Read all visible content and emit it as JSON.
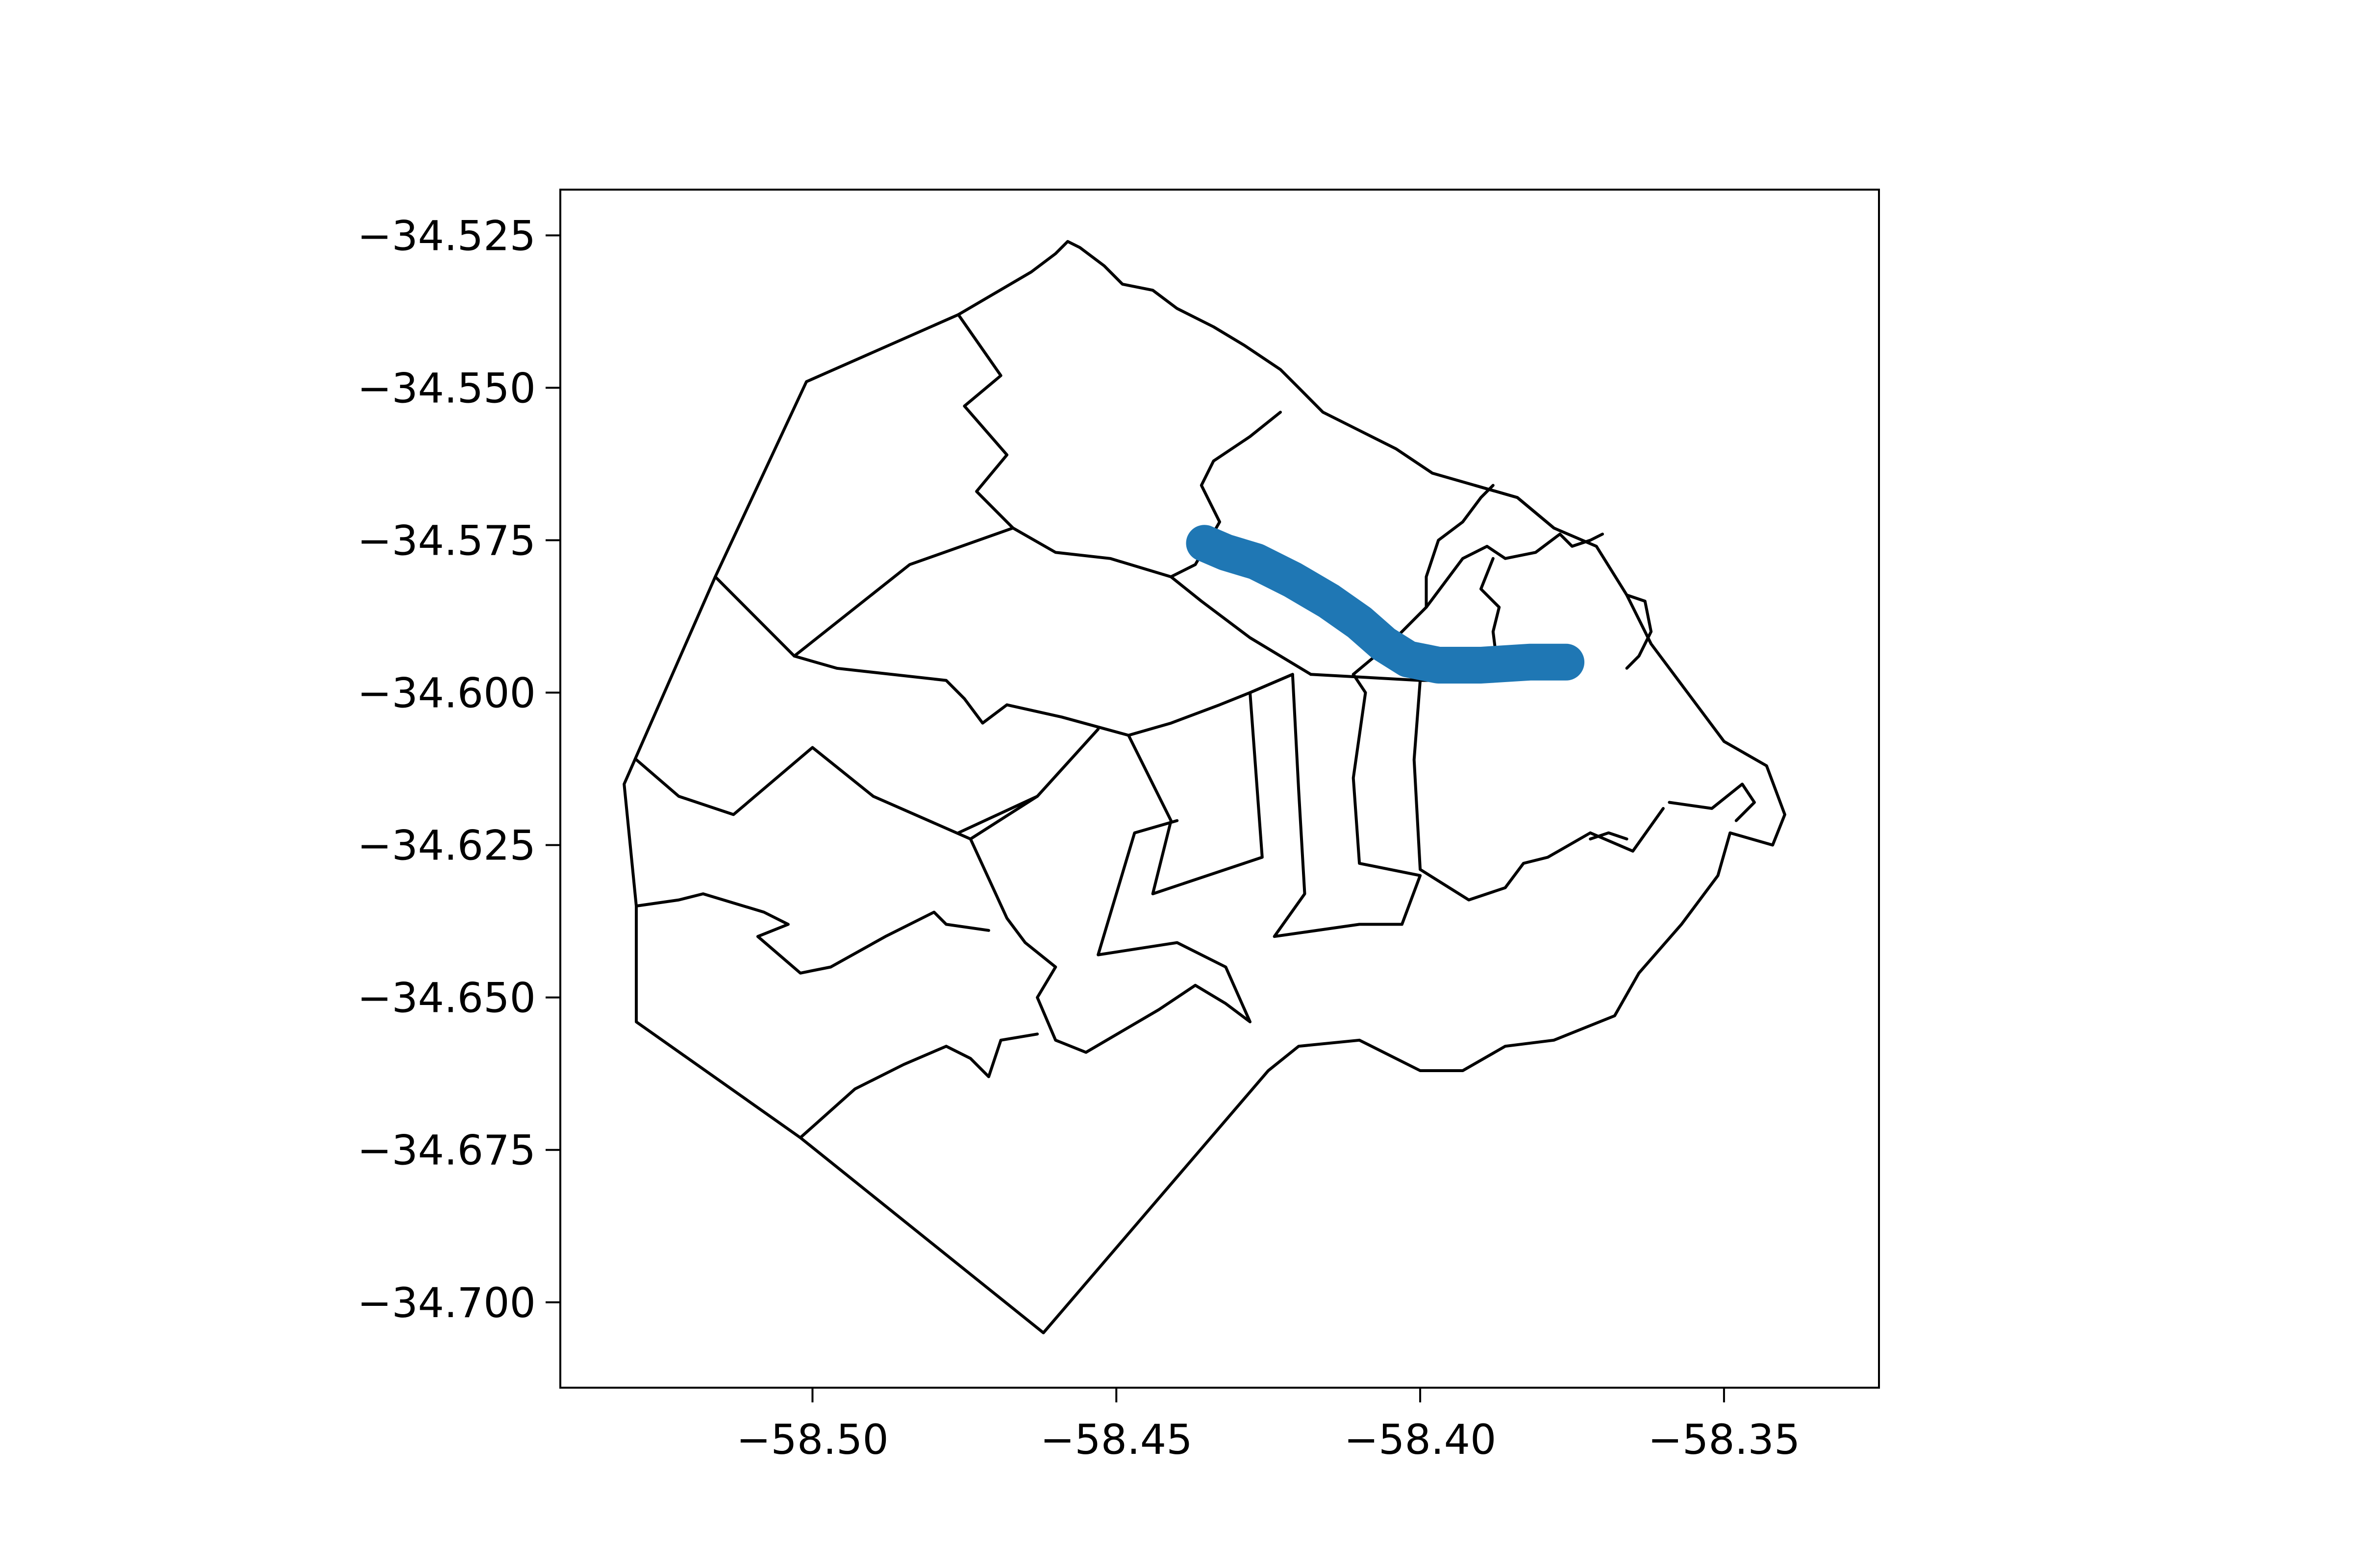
{
  "chart_data": {
    "type": "map",
    "xlim": [
      -58.5415,
      -58.3245
    ],
    "ylim": [
      -34.714,
      -34.5175
    ],
    "x_ticks": [
      -58.5,
      -58.45,
      -58.4,
      -58.35
    ],
    "y_ticks": [
      -34.525,
      -34.55,
      -34.575,
      -34.6,
      -34.625,
      -34.65,
      -34.675,
      -34.7
    ],
    "x_tick_labels": [
      "−58.50",
      "−58.45",
      "−58.40",
      "−58.35"
    ],
    "y_tick_labels": [
      "−34.525",
      "−34.550",
      "−34.575",
      "−34.600",
      "−34.625",
      "−34.650",
      "−34.675",
      "−34.700"
    ],
    "grid": false,
    "boundary_color": "#000000",
    "route": {
      "color": "#1f77b4",
      "coordinates": [
        [
          -58.4355,
          -34.5755
        ],
        [
          -58.432,
          -34.577
        ],
        [
          -58.427,
          -34.5785
        ],
        [
          -58.421,
          -34.5815
        ],
        [
          -58.415,
          -34.585
        ],
        [
          -58.41,
          -34.5885
        ],
        [
          -58.406,
          -34.592
        ],
        [
          -58.402,
          -34.5945
        ],
        [
          -58.397,
          -34.5955
        ],
        [
          -58.39,
          -34.5955
        ],
        [
          -58.382,
          -34.595
        ],
        [
          -58.376,
          -34.595
        ]
      ]
    },
    "boundaries": [
      [
        [
          -58.531,
          -34.615
        ],
        [
          -58.529,
          -34.635
        ],
        [
          -58.529,
          -34.654
        ],
        [
          -58.502,
          -34.673
        ],
        [
          -58.462,
          -34.705
        ],
        [
          -58.425,
          -34.662
        ],
        [
          -58.42,
          -34.658
        ],
        [
          -58.41,
          -34.657
        ],
        [
          -58.4,
          -34.662
        ],
        [
          -58.393,
          -34.662
        ],
        [
          -58.386,
          -34.658
        ],
        [
          -58.378,
          -34.657
        ],
        [
          -58.368,
          -34.653
        ],
        [
          -58.364,
          -34.646
        ],
        [
          -58.357,
          -34.638
        ],
        [
          -58.351,
          -34.63
        ],
        [
          -58.349,
          -34.623
        ],
        [
          -58.342,
          -34.625
        ],
        [
          -58.34,
          -34.62
        ],
        [
          -58.343,
          -34.612
        ],
        [
          -58.35,
          -34.608
        ],
        [
          -58.356,
          -34.6
        ],
        [
          -58.362,
          -34.592
        ],
        [
          -58.366,
          -34.584
        ],
        [
          -58.371,
          -34.576
        ],
        [
          -58.378,
          -34.573
        ],
        [
          -58.384,
          -34.568
        ],
        [
          -58.391,
          -34.566
        ],
        [
          -58.398,
          -34.564
        ],
        [
          -58.404,
          -34.56
        ],
        [
          -58.41,
          -34.557
        ],
        [
          -58.416,
          -34.554
        ],
        [
          -58.42,
          -34.55
        ],
        [
          -58.423,
          -34.547
        ],
        [
          -58.429,
          -34.543
        ],
        [
          -58.434,
          -34.54
        ],
        [
          -58.44,
          -34.537
        ],
        [
          -58.444,
          -34.534
        ],
        [
          -58.449,
          -34.533
        ],
        [
          -58.452,
          -34.53
        ],
        [
          -58.456,
          -34.527
        ],
        [
          -58.458,
          -34.526
        ],
        [
          -58.46,
          -34.528
        ],
        [
          -58.464,
          -34.531
        ],
        [
          -58.476,
          -34.538
        ],
        [
          -58.501,
          -34.549
        ],
        [
          -58.516,
          -34.581
        ],
        [
          -58.531,
          -34.615
        ]
      ],
      [
        [
          -58.476,
          -34.538
        ],
        [
          -58.469,
          -34.548
        ],
        [
          -58.475,
          -34.553
        ],
        [
          -58.468,
          -34.561
        ],
        [
          -58.473,
          -34.567
        ],
        [
          -58.467,
          -34.573
        ]
      ],
      [
        [
          -58.516,
          -34.581
        ],
        [
          -58.503,
          -34.594
        ],
        [
          -58.484,
          -34.579
        ],
        [
          -58.467,
          -34.573
        ],
        [
          -58.46,
          -34.577
        ],
        [
          -58.451,
          -34.578
        ],
        [
          -58.441,
          -34.581
        ],
        [
          -58.437,
          -34.579
        ],
        [
          -58.433,
          -34.572
        ],
        [
          -58.436,
          -34.566
        ],
        [
          -58.434,
          -34.562
        ],
        [
          -58.428,
          -34.558
        ],
        [
          -58.423,
          -34.554
        ]
      ],
      [
        [
          -58.503,
          -34.594
        ],
        [
          -58.496,
          -34.596
        ],
        [
          -58.478,
          -34.598
        ],
        [
          -58.475,
          -34.601
        ],
        [
          -58.472,
          -34.605
        ],
        [
          -58.468,
          -34.602
        ],
        [
          -58.459,
          -34.604
        ],
        [
          -58.448,
          -34.607
        ],
        [
          -58.441,
          -34.605
        ],
        [
          -58.433,
          -34.602
        ],
        [
          -58.428,
          -34.6
        ]
      ],
      [
        [
          -58.441,
          -34.581
        ],
        [
          -58.436,
          -34.585
        ],
        [
          -58.428,
          -34.591
        ],
        [
          -58.418,
          -34.597
        ]
      ],
      [
        [
          -58.529,
          -34.611
        ],
        [
          -58.522,
          -34.617
        ],
        [
          -58.513,
          -34.62
        ],
        [
          -58.5,
          -34.609
        ],
        [
          -58.49,
          -34.617
        ],
        [
          -58.474,
          -34.624
        ],
        [
          -58.463,
          -34.617
        ],
        [
          -58.453,
          -34.606
        ]
      ],
      [
        [
          -58.463,
          -34.617
        ],
        [
          -58.476,
          -34.623
        ]
      ],
      [
        [
          -58.474,
          -34.624
        ],
        [
          -58.468,
          -34.637
        ],
        [
          -58.465,
          -34.641
        ],
        [
          -58.46,
          -34.645
        ],
        [
          -58.463,
          -34.65
        ],
        [
          -58.46,
          -34.657
        ],
        [
          -58.455,
          -34.659
        ],
        [
          -58.443,
          -34.652
        ],
        [
          -58.437,
          -34.648
        ],
        [
          -58.432,
          -34.651
        ],
        [
          -58.428,
          -34.654
        ],
        [
          -58.432,
          -34.645
        ],
        [
          -58.44,
          -34.641
        ],
        [
          -58.453,
          -34.643
        ],
        [
          -58.447,
          -34.623
        ],
        [
          -58.44,
          -34.621
        ]
      ],
      [
        [
          -58.529,
          -34.635
        ],
        [
          -58.522,
          -34.634
        ],
        [
          -58.518,
          -34.633
        ],
        [
          -58.508,
          -34.636
        ],
        [
          -58.504,
          -34.638
        ],
        [
          -58.509,
          -34.64
        ],
        [
          -58.502,
          -34.646
        ],
        [
          -58.497,
          -34.645
        ],
        [
          -58.488,
          -34.64
        ],
        [
          -58.48,
          -34.636
        ],
        [
          -58.478,
          -34.638
        ],
        [
          -58.471,
          -34.639
        ]
      ],
      [
        [
          -58.502,
          -34.673
        ],
        [
          -58.493,
          -34.665
        ],
        [
          -58.485,
          -34.661
        ],
        [
          -58.478,
          -34.658
        ],
        [
          -58.474,
          -34.66
        ],
        [
          -58.471,
          -34.663
        ],
        [
          -58.469,
          -34.657
        ],
        [
          -58.463,
          -34.656
        ]
      ],
      [
        [
          -58.448,
          -34.607
        ],
        [
          -58.441,
          -34.621
        ],
        [
          -58.444,
          -34.633
        ],
        [
          -58.426,
          -34.627
        ],
        [
          -58.428,
          -34.6
        ],
        [
          -58.421,
          -34.597
        ],
        [
          -58.42,
          -34.616
        ],
        [
          -58.419,
          -34.633
        ],
        [
          -58.424,
          -34.64
        ],
        [
          -58.41,
          -34.638
        ],
        [
          -58.403,
          -34.638
        ],
        [
          -58.4,
          -34.63
        ],
        [
          -58.41,
          -34.628
        ],
        [
          -58.411,
          -34.614
        ],
        [
          -58.409,
          -34.6
        ],
        [
          -58.411,
          -34.597
        ]
      ],
      [
        [
          -58.421,
          -34.597
        ],
        [
          -58.428,
          -34.6
        ]
      ],
      [
        [
          -58.418,
          -34.597
        ],
        [
          -58.4,
          -34.598
        ],
        [
          -58.392,
          -34.598
        ]
      ],
      [
        [
          -58.4,
          -34.598
        ],
        [
          -58.401,
          -34.611
        ],
        [
          -58.4,
          -34.629
        ],
        [
          -58.392,
          -34.634
        ],
        [
          -58.386,
          -34.632
        ],
        [
          -58.383,
          -34.628
        ],
        [
          -58.379,
          -34.627
        ],
        [
          -58.372,
          -34.623
        ],
        [
          -58.365,
          -34.626
        ],
        [
          -58.36,
          -34.619
        ]
      ],
      [
        [
          -58.411,
          -34.597
        ],
        [
          -58.405,
          -34.592
        ],
        [
          -58.399,
          -34.586
        ],
        [
          -58.396,
          -34.582
        ],
        [
          -58.393,
          -34.578
        ],
        [
          -58.389,
          -34.576
        ],
        [
          -58.386,
          -34.578
        ],
        [
          -58.381,
          -34.577
        ],
        [
          -58.377,
          -34.574
        ],
        [
          -58.375,
          -34.576
        ],
        [
          -58.372,
          -34.575
        ],
        [
          -58.37,
          -34.574
        ]
      ],
      [
        [
          -58.399,
          -34.586
        ],
        [
          -58.399,
          -34.581
        ],
        [
          -58.397,
          -34.575
        ],
        [
          -58.393,
          -34.572
        ],
        [
          -58.39,
          -34.568
        ],
        [
          -58.388,
          -34.566
        ]
      ],
      [
        [
          -58.391,
          -34.566
        ],
        [
          -58.384,
          -34.568
        ],
        [
          -58.378,
          -34.573
        ]
      ],
      [
        [
          -58.388,
          -34.578
        ],
        [
          -58.39,
          -34.583
        ],
        [
          -58.387,
          -34.586
        ],
        [
          -58.388,
          -34.59
        ],
        [
          -58.387,
          -34.598
        ]
      ],
      [
        [
          -58.366,
          -34.584
        ],
        [
          -58.363,
          -34.585
        ],
        [
          -58.362,
          -34.59
        ],
        [
          -58.364,
          -34.594
        ],
        [
          -58.366,
          -34.596
        ]
      ],
      [
        [
          -58.359,
          -34.618
        ],
        [
          -58.352,
          -34.619
        ],
        [
          -58.347,
          -34.615
        ],
        [
          -58.345,
          -34.618
        ],
        [
          -58.348,
          -34.621
        ]
      ],
      [
        [
          -58.372,
          -34.624
        ],
        [
          -58.369,
          -34.623
        ],
        [
          -58.366,
          -34.624
        ]
      ]
    ]
  }
}
